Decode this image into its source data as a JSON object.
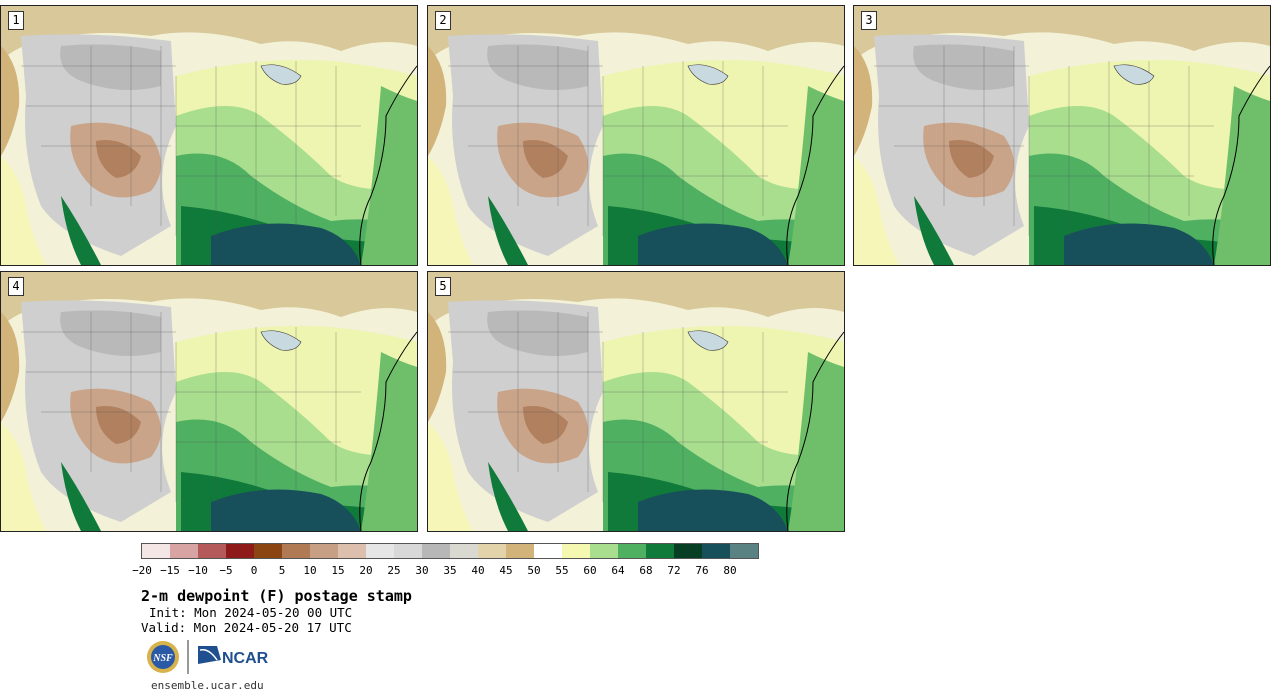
{
  "panels": [
    {
      "num": "1"
    },
    {
      "num": "2"
    },
    {
      "num": "3"
    },
    {
      "num": "4"
    },
    {
      "num": "5"
    }
  ],
  "colorbar": {
    "colors": [
      "#f5e6e6",
      "#d7a3a3",
      "#b55a5a",
      "#8e1a1a",
      "#8b4513",
      "#b07a55",
      "#c79f85",
      "#dcbfad",
      "#e6e6e6",
      "#d8d8d8",
      "#b7b7b7",
      "#d9d9d1",
      "#e2d3aa",
      "#d2b47a",
      "#ffffff",
      "#f5f8b0",
      "#a8de8e",
      "#4fb062",
      "#107a3a",
      "#063f24",
      "#174f5a",
      "#5a8283"
    ],
    "labels": [
      "−20",
      "−15",
      "−10",
      "−5",
      "0",
      "5",
      "10",
      "15",
      "20",
      "25",
      "30",
      "35",
      "40",
      "45",
      "50",
      "55",
      "60",
      "64",
      "68",
      "72",
      "76",
      "80"
    ]
  },
  "title": "2-m dewpoint (F) postage stamp",
  "init": "Init: Mon 2024-05-20 00 UTC",
  "valid": "Valid: Mon 2024-05-20 17 UTC",
  "logos": {
    "nsf": "NSF",
    "ncar": "NCAR"
  },
  "footer_url": "ensemble.ucar.edu"
}
